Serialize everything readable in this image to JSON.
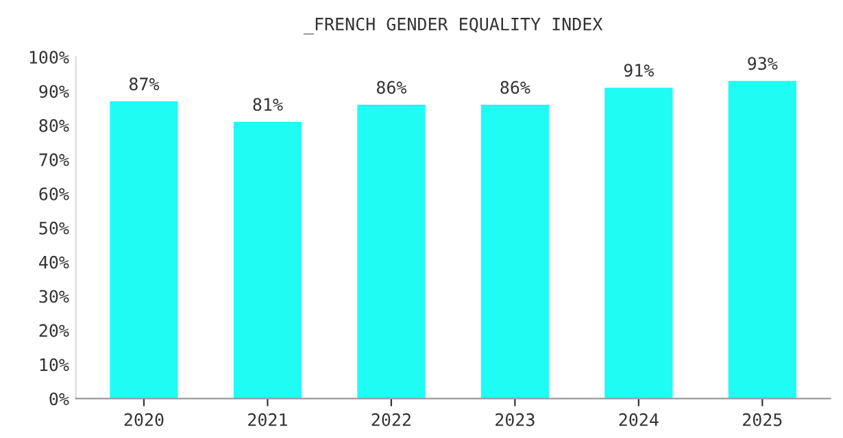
{
  "chart_data": {
    "type": "bar",
    "title": "_FRENCH GENDER EQUALITY INDEX",
    "categories": [
      "2020",
      "2021",
      "2022",
      "2023",
      "2024",
      "2025"
    ],
    "values": [
      87,
      81,
      86,
      86,
      91,
      93
    ],
    "value_labels": [
      "87%",
      "81%",
      "86%",
      "86%",
      "91%",
      "93%"
    ],
    "color": "#1ffcf4",
    "ylim": [
      0,
      100
    ],
    "yticks": [
      {
        "value": 0,
        "label": "0%"
      },
      {
        "value": 10,
        "label": "10%"
      },
      {
        "value": 20,
        "label": "20%"
      },
      {
        "value": 30,
        "label": "30%"
      },
      {
        "value": 40,
        "label": "40%"
      },
      {
        "value": 50,
        "label": "50%"
      },
      {
        "value": 60,
        "label": "60%"
      },
      {
        "value": 70,
        "label": "70%"
      },
      {
        "value": 80,
        "label": "80%"
      },
      {
        "value": 90,
        "label": "90%"
      },
      {
        "value": 100,
        "label": "100%"
      }
    ],
    "grid": false,
    "legend": false
  }
}
